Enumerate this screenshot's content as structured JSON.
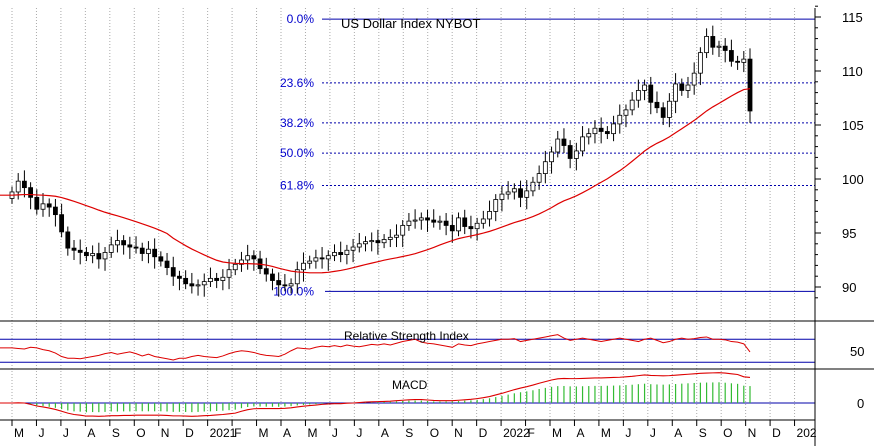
{
  "chart_data": {
    "type": "candlestick",
    "title": "US Dollar Index NYBOT",
    "x_tick_labels": [
      "M",
      "J",
      "J",
      "A",
      "S",
      "O",
      "N",
      "D",
      "2021",
      "F",
      "M",
      "A",
      "M",
      "J",
      "J",
      "A",
      "S",
      "O",
      "N",
      "D",
      "2022",
      "F",
      "M",
      "A",
      "M",
      "J",
      "J",
      "A",
      "S",
      "O",
      "N",
      "D",
      "202"
    ],
    "price_panel": {
      "y_ticks": [
        90,
        95,
        100,
        105,
        110,
        115
      ],
      "ylim": [
        88.3,
        117.6
      ],
      "fib_levels": [
        {
          "label": "0.0%",
          "value": 114.8
        },
        {
          "label": "23.6%",
          "value": 108.9
        },
        {
          "label": "38.2%",
          "value": 105.2
        },
        {
          "label": "50.0%",
          "value": 102.4
        },
        {
          "label": "61.8%",
          "value": 99.4
        },
        {
          "label": "100.0%",
          "value": 89.6
        }
      ],
      "weekly_closes": [
        98.8,
        99.8,
        99.2,
        98.3,
        97.2,
        97.7,
        97.4,
        96.7,
        95.1,
        93.6,
        93.4,
        93.2,
        92.9,
        93.1,
        92.6,
        93.2,
        93.9,
        94.3,
        93.9,
        93.7,
        93.6,
        93.1,
        93.5,
        92.8,
        92.4,
        91.8,
        91.0,
        90.8,
        90.3,
        90.1,
        90.2,
        90.5,
        90.8,
        90.6,
        90.9,
        91.6,
        92.1,
        92.5,
        92.9,
        92.6,
        91.7,
        91.2,
        90.6,
        90.2,
        90.1,
        90.3,
        91.6,
        92.2,
        92.4,
        92.7,
        92.6,
        92.9,
        93.2,
        93.0,
        93.4,
        93.7,
        94.0,
        94.2,
        94.3,
        94.1,
        94.4,
        94.6,
        94.8,
        95.7,
        96.1,
        96.2,
        96.4,
        96.2,
        96.0,
        96.1,
        95.7,
        95.2,
        96.4,
        95.6,
        95.4,
        95.9,
        96.3,
        97.0,
        98.1,
        98.6,
        98.8,
        99.1,
        98.3,
        98.9,
        99.7,
        100.5,
        101.6,
        102.5,
        103.7,
        103.1,
        101.9,
        102.6,
        103.9,
        104.2,
        104.7,
        104.4,
        104.2,
        105.1,
        105.9,
        106.4,
        107.3,
        108.2,
        108.7,
        107.1,
        106.6,
        105.7,
        107.2,
        108.8,
        108.2,
        108.7,
        109.8,
        111.7,
        113.2,
        112.2,
        112.3,
        111.9,
        110.9,
        110.8,
        111.1,
        106.3
      ],
      "moving_average_start": 98.5,
      "moving_average_end": 104.9
    },
    "rsi_panel": {
      "label": "Relative Strength Index",
      "y_ticks": [
        50
      ],
      "ylim": [
        20,
        100
      ],
      "upper_line": 70,
      "lower_line": 30,
      "values": [
        55,
        54,
        53,
        56,
        55,
        52,
        50,
        46,
        40,
        37,
        37,
        36,
        38,
        40,
        42,
        45,
        47,
        44,
        46,
        48,
        45,
        41,
        44,
        40,
        38,
        36,
        34,
        37,
        37,
        40,
        42,
        40,
        39,
        38,
        41,
        45,
        48,
        50,
        49,
        47,
        44,
        42,
        41,
        40,
        44,
        50,
        55,
        54,
        53,
        56,
        58,
        57,
        59,
        57,
        60,
        58,
        57,
        59,
        61,
        60,
        62,
        60,
        63,
        66,
        68,
        70,
        65,
        63,
        62,
        60,
        58,
        56,
        62,
        60,
        59,
        62,
        64,
        66,
        68,
        70,
        70,
        71,
        66,
        68,
        70,
        72,
        74,
        76,
        78,
        72,
        68,
        70,
        72,
        70,
        68,
        66,
        68,
        70,
        72,
        70,
        68,
        66,
        70,
        72,
        68,
        64,
        66,
        70,
        72,
        70,
        71,
        73,
        74,
        70,
        70,
        69,
        66,
        65,
        62,
        48
      ]
    },
    "macd_panel": {
      "label": "MACD",
      "y_ticks": [
        0
      ],
      "ylim": [
        -0.78,
        1.42
      ],
      "macd_line": [
        0.0,
        0.01,
        0.0,
        -0.06,
        -0.13,
        -0.17,
        -0.22,
        -0.28,
        -0.36,
        -0.44,
        -0.5,
        -0.53,
        -0.57,
        -0.57,
        -0.58,
        -0.57,
        -0.55,
        -0.55,
        -0.54,
        -0.54,
        -0.53,
        -0.53,
        -0.53,
        -0.53,
        -0.53,
        -0.54,
        -0.56,
        -0.56,
        -0.57,
        -0.58,
        -0.57,
        -0.55,
        -0.54,
        -0.52,
        -0.5,
        -0.47,
        -0.44,
        -0.36,
        -0.29,
        -0.25,
        -0.24,
        -0.24,
        -0.24,
        -0.24,
        -0.23,
        -0.21,
        -0.17,
        -0.14,
        -0.11,
        -0.09,
        -0.06,
        -0.04,
        -0.03,
        -0.03,
        -0.01,
        0.0,
        0.02,
        0.04,
        0.05,
        0.06,
        0.07,
        0.08,
        0.1,
        0.12,
        0.14,
        0.15,
        0.15,
        0.13,
        0.11,
        0.1,
        0.1,
        0.1,
        0.12,
        0.14,
        0.16,
        0.19,
        0.23,
        0.28,
        0.35,
        0.42,
        0.5,
        0.58,
        0.65,
        0.71,
        0.78,
        0.86,
        0.93,
        1.0,
        1.05,
        1.07,
        1.06,
        1.06,
        1.07,
        1.08,
        1.09,
        1.09,
        1.1,
        1.11,
        1.12,
        1.14,
        1.16,
        1.19,
        1.22,
        1.2,
        1.19,
        1.18,
        1.19,
        1.21,
        1.23,
        1.25,
        1.27,
        1.29,
        1.3,
        1.31,
        1.32,
        1.3,
        1.27,
        1.24,
        1.14,
        1.11
      ],
      "histogram_sign": "bars from zero line, negative until mid-2021, positive afterwards"
    }
  },
  "colors": {
    "background": "#ffffff",
    "axis": "#000000",
    "fib_line": "#0000aa",
    "fib_label": "#0000cc",
    "moving_average": "#dd0000",
    "rsi_line": "#dd0000",
    "macd_line": "#dd0000",
    "macd_histogram": "#33bb33",
    "grid": "#aaaaaa",
    "candle_up": "#ffffff",
    "candle_down": "#000000"
  }
}
